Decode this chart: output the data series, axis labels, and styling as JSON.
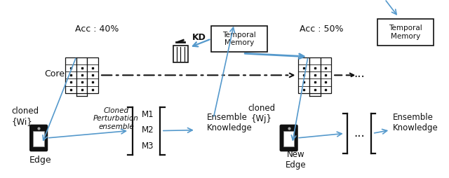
{
  "fig_width": 6.4,
  "fig_height": 2.54,
  "dpi": 100,
  "bg_color": "#ffffff",
  "blue": "#5599cc",
  "black": "#111111",
  "core_label": "Core",
  "edge_label": "Edge",
  "new_edge_label": "New\nEdge",
  "acc1_label": "Acc : 40%",
  "acc2_label": "Acc : 50%",
  "cloned1": "cloned\n{Wi}",
  "cloned2": "cloned\n{Wj}",
  "ens1": "Ensemble\nKnowledge",
  "ens2": "Ensemble\nKnowledge",
  "cloned_pert": "Cloned\nPerturbation\nensemble",
  "kd": "KD",
  "dots": "...",
  "m1": "M1",
  "m2": "M2",
  "m3": "M3",
  "tm1": "Temporal\nMemory",
  "tm2": "Temporal\nMemory"
}
